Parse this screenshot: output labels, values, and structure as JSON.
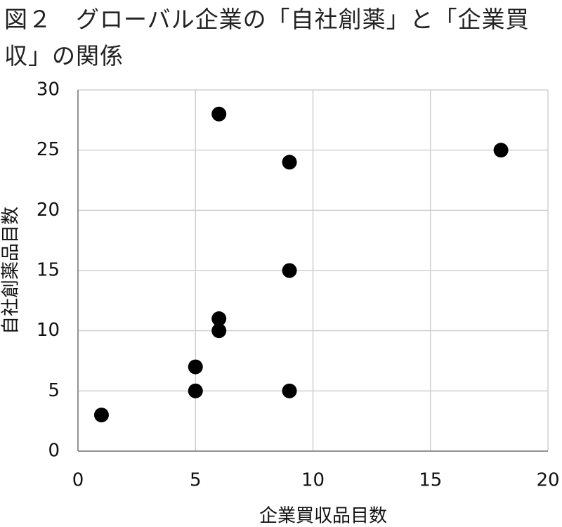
{
  "chart_data": {
    "type": "scatter",
    "title": "図２　グローバル企業の「自社創薬」と「企業買収」の関係",
    "x_label": "企業買収品目数",
    "y_label": "自社創薬品目数",
    "x": [
      1,
      5,
      5,
      6,
      6,
      6,
      9,
      9,
      9,
      18
    ],
    "values": [
      3,
      5,
      7,
      10,
      11,
      28,
      5,
      15,
      24,
      25
    ],
    "color": "#000000",
    "xlim": [
      0,
      20
    ],
    "xticks": [
      0,
      5,
      10,
      15,
      20
    ],
    "ylim": [
      0,
      30
    ],
    "yticks": [
      0,
      5,
      10,
      15,
      20,
      25,
      30
    ],
    "grid": true
  }
}
